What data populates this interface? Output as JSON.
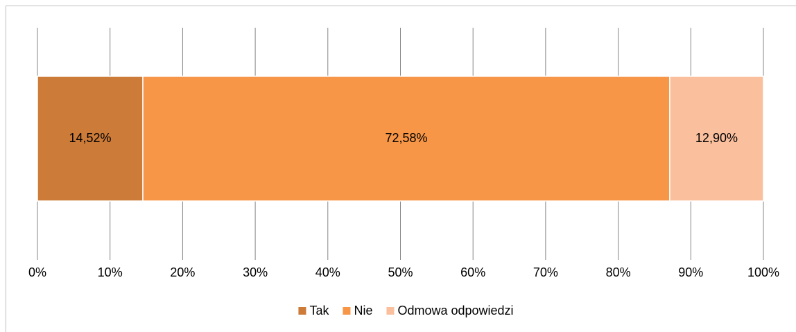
{
  "chart_data": {
    "type": "stacked_bar_horizontal",
    "categories": [
      null
    ],
    "series": [
      {
        "name": "Tak",
        "color": "#cc7b38",
        "values": [
          14.52
        ],
        "value_labels": [
          "14,52%"
        ]
      },
      {
        "name": "Nie",
        "color": "#f79646",
        "values": [
          72.58
        ],
        "value_labels": [
          "72,58%"
        ]
      },
      {
        "name": "Odmowa odpowiedzi",
        "color": "#fac09e",
        "values": [
          12.9
        ],
        "value_labels": [
          "12,90%"
        ]
      }
    ],
    "xlim": [
      0,
      100
    ],
    "xticks": [
      {
        "value": 0,
        "label": "0%"
      },
      {
        "value": 10,
        "label": "10%"
      },
      {
        "value": 20,
        "label": "20%"
      },
      {
        "value": 30,
        "label": "30%"
      },
      {
        "value": 40,
        "label": "40%"
      },
      {
        "value": 50,
        "label": "50%"
      },
      {
        "value": 60,
        "label": "60%"
      },
      {
        "value": 70,
        "label": "70%"
      },
      {
        "value": 80,
        "label": "80%"
      },
      {
        "value": 90,
        "label": "90%"
      },
      {
        "value": 100,
        "label": "100%"
      }
    ],
    "grid": true,
    "legend": "bottom"
  }
}
